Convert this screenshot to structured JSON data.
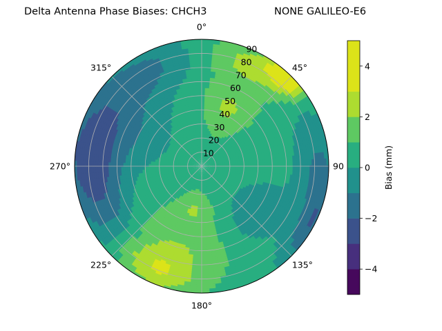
{
  "chart_data": {
    "type": "heatmap",
    "projection": "polar",
    "title": "Delta Antenna Phase Biases: CHCH3",
    "subtitle": "NONE GALILEO-E6",
    "angular_axis": {
      "zero_location": "top",
      "direction": "clockwise",
      "tick_values": [
        0,
        45,
        90,
        135,
        180,
        225,
        270,
        315
      ],
      "tick_labels": [
        "0°",
        "45°",
        "90",
        "135°",
        "180°",
        "225°",
        "270°",
        "315°"
      ]
    },
    "radial_axis": {
      "range": [
        0,
        90
      ],
      "tick_values": [
        10,
        20,
        30,
        40,
        50,
        60,
        70,
        80,
        90
      ],
      "tick_labels": [
        "10",
        "20",
        "30",
        "40",
        "50",
        "60",
        "70",
        "80",
        "90"
      ]
    },
    "grid": true,
    "colorbar": {
      "label": "Bias (mm)",
      "range": [
        -5,
        5
      ],
      "levels": [
        -5,
        -4,
        -3,
        -2,
        -1,
        0,
        1,
        2,
        3,
        4,
        5
      ],
      "colors": [
        "#46085c",
        "#472f7d",
        "#3b528b",
        "#2c728e",
        "#21918c",
        "#28ae80",
        "#5ec962",
        "#addc30",
        "#dce319"
      ],
      "tick_values": [
        -4,
        -2,
        0,
        2,
        4
      ],
      "tick_labels": [
        "−4",
        "−2",
        "0",
        "2",
        "4"
      ]
    },
    "regions": [
      {
        "center_az": 275,
        "center_r": 80,
        "width_az": 40,
        "width_r": 22,
        "value": -2.8
      },
      {
        "center_az": 300,
        "center_r": 55,
        "width_az": 35,
        "width_r": 30,
        "value": -1.3
      },
      {
        "center_az": 335,
        "center_r": 78,
        "width_az": 22,
        "width_r": 18,
        "value": -1.2
      },
      {
        "center_az": 45,
        "center_r": 88,
        "width_az": 10,
        "width_r": 10,
        "value": 3.8
      },
      {
        "center_az": 28,
        "center_r": 80,
        "width_az": 22,
        "width_r": 14,
        "value": 1.8
      },
      {
        "center_az": 25,
        "center_r": 45,
        "width_az": 22,
        "width_r": 20,
        "value": 1.6
      },
      {
        "center_az": 90,
        "center_r": 82,
        "width_az": 30,
        "width_r": 16,
        "value": -1.6
      },
      {
        "center_az": 130,
        "center_r": 50,
        "width_az": 25,
        "width_r": 20,
        "value": -1.4
      },
      {
        "center_az": 120,
        "center_r": 88,
        "width_az": 20,
        "width_r": 10,
        "value": -2.0
      },
      {
        "center_az": 198,
        "center_r": 60,
        "width_az": 35,
        "width_r": 25,
        "value": 1.4
      },
      {
        "center_az": 205,
        "center_r": 80,
        "width_az": 20,
        "width_r": 14,
        "value": 2.0
      },
      {
        "center_az": 245,
        "center_r": 70,
        "width_az": 22,
        "width_r": 15,
        "value": -0.8
      },
      {
        "center_az": 190,
        "center_r": 30,
        "width_az": 22,
        "width_r": 12,
        "value": 1.2
      }
    ]
  }
}
